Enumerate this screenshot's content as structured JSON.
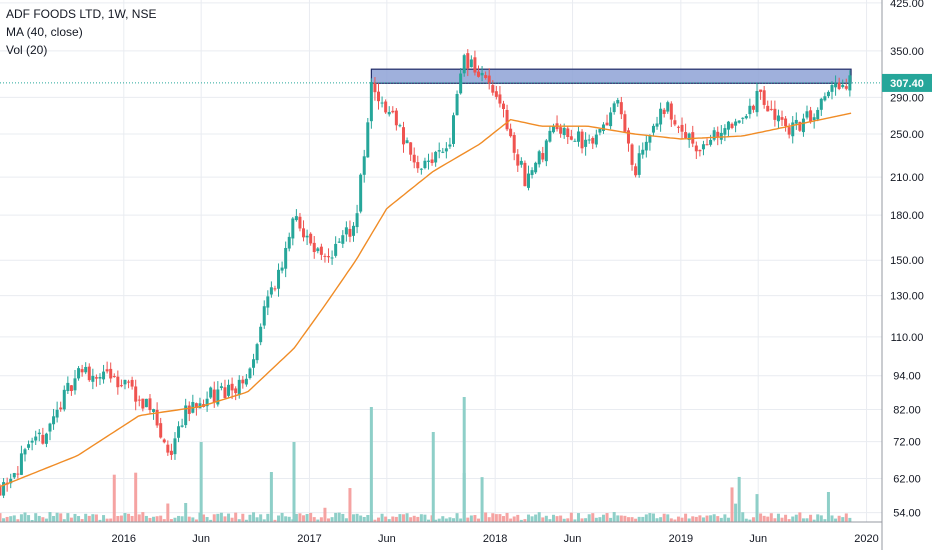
{
  "legend": {
    "symbol": "ADF FOODS LTD, 1W, NSE",
    "ma": "MA (40, close)",
    "vol": "Vol (20)"
  },
  "colors": {
    "up": "#26a69a",
    "down": "#ef5350",
    "up_volume": "#8ecfc8",
    "down_volume": "#f5a3a2",
    "ma": "#f08c26",
    "grid": "#e9ecf1",
    "resistance_fill": "#8ea2d6",
    "resistance_border": "#1f2a66",
    "price_line": "#26a69a"
  },
  "chart_data": {
    "type": "candlestick",
    "scale": "log",
    "y_range": [
      52,
      430
    ],
    "x_range": [
      "2015-05",
      "2020-02"
    ],
    "current_price": 307.4,
    "current_price_label": "307.40",
    "y_ticks": [
      {
        "value": 425,
        "label": "425.00"
      },
      {
        "value": 350,
        "label": "350.00"
      },
      {
        "value": 290,
        "label": "290.00"
      },
      {
        "value": 250,
        "label": "250.00"
      },
      {
        "value": 210,
        "label": "210.00"
      },
      {
        "value": 180,
        "label": "180.00"
      },
      {
        "value": 150,
        "label": "150.00"
      },
      {
        "value": 130,
        "label": "130.00"
      },
      {
        "value": 110,
        "label": "110.00"
      },
      {
        "value": 94,
        "label": "94.00"
      },
      {
        "value": 82,
        "label": "82.00"
      },
      {
        "value": 72,
        "label": "72.00"
      },
      {
        "value": 62,
        "label": "62.00"
      },
      {
        "value": 54,
        "label": "54.00"
      }
    ],
    "x_ticks": [
      {
        "date": "2016-01",
        "label": "2016"
      },
      {
        "date": "2016-06",
        "label": "Jun"
      },
      {
        "date": "2017-01",
        "label": "2017"
      },
      {
        "date": "2017-06",
        "label": "Jun"
      },
      {
        "date": "2018-01",
        "label": "2018"
      },
      {
        "date": "2018-06",
        "label": "Jun"
      },
      {
        "date": "2019-01",
        "label": "2019"
      },
      {
        "date": "2019-06",
        "label": "Jun"
      },
      {
        "date": "2020-01",
        "label": "2020"
      }
    ],
    "resistance_zone": {
      "from": "2017-05",
      "to": "2019-12",
      "low": 307,
      "high": 325
    },
    "price_path": [
      {
        "date": "2015-05",
        "close": 60
      },
      {
        "date": "2015-08",
        "close": 75
      },
      {
        "date": "2015-10",
        "close": 96
      },
      {
        "date": "2016-01",
        "close": 92
      },
      {
        "date": "2016-03",
        "close": 80
      },
      {
        "date": "2016-04",
        "close": 66
      },
      {
        "date": "2016-05",
        "close": 82
      },
      {
        "date": "2016-07",
        "close": 88
      },
      {
        "date": "2016-09",
        "close": 90
      },
      {
        "date": "2016-10",
        "close": 120
      },
      {
        "date": "2016-11",
        "close": 140
      },
      {
        "date": "2016-12",
        "close": 182
      },
      {
        "date": "2017-01",
        "close": 160
      },
      {
        "date": "2017-02",
        "close": 150
      },
      {
        "date": "2017-04",
        "close": 175
      },
      {
        "date": "2017-05",
        "close": 300
      },
      {
        "date": "2017-06",
        "close": 280
      },
      {
        "date": "2017-08",
        "close": 220
      },
      {
        "date": "2017-10",
        "close": 240
      },
      {
        "date": "2017-11",
        "close": 340
      },
      {
        "date": "2018-01",
        "close": 300
      },
      {
        "date": "2018-03",
        "close": 205
      },
      {
        "date": "2018-05",
        "close": 260
      },
      {
        "date": "2018-07",
        "close": 240
      },
      {
        "date": "2018-09",
        "close": 285
      },
      {
        "date": "2018-10",
        "close": 215
      },
      {
        "date": "2018-12",
        "close": 280
      },
      {
        "date": "2019-02",
        "close": 235
      },
      {
        "date": "2019-04",
        "close": 255
      },
      {
        "date": "2019-06",
        "close": 290
      },
      {
        "date": "2019-08",
        "close": 255
      },
      {
        "date": "2019-09",
        "close": 265
      },
      {
        "date": "2019-11",
        "close": 300
      },
      {
        "date": "2019-12",
        "close": 307.4
      }
    ],
    "ma_path": [
      {
        "date": "2015-05",
        "value": 60
      },
      {
        "date": "2015-10",
        "value": 68
      },
      {
        "date": "2016-02",
        "value": 80
      },
      {
        "date": "2016-06",
        "value": 83
      },
      {
        "date": "2016-09",
        "value": 88
      },
      {
        "date": "2016-12",
        "value": 105
      },
      {
        "date": "2017-02",
        "value": 125
      },
      {
        "date": "2017-04",
        "value": 150
      },
      {
        "date": "2017-06",
        "value": 185
      },
      {
        "date": "2017-09",
        "value": 215
      },
      {
        "date": "2017-12",
        "value": 240
      },
      {
        "date": "2018-02",
        "value": 265
      },
      {
        "date": "2018-04",
        "value": 258
      },
      {
        "date": "2018-07",
        "value": 258
      },
      {
        "date": "2018-10",
        "value": 250
      },
      {
        "date": "2019-01",
        "value": 245
      },
      {
        "date": "2019-05",
        "value": 248
      },
      {
        "date": "2019-08",
        "value": 258
      },
      {
        "date": "2019-12",
        "value": 272
      }
    ]
  }
}
